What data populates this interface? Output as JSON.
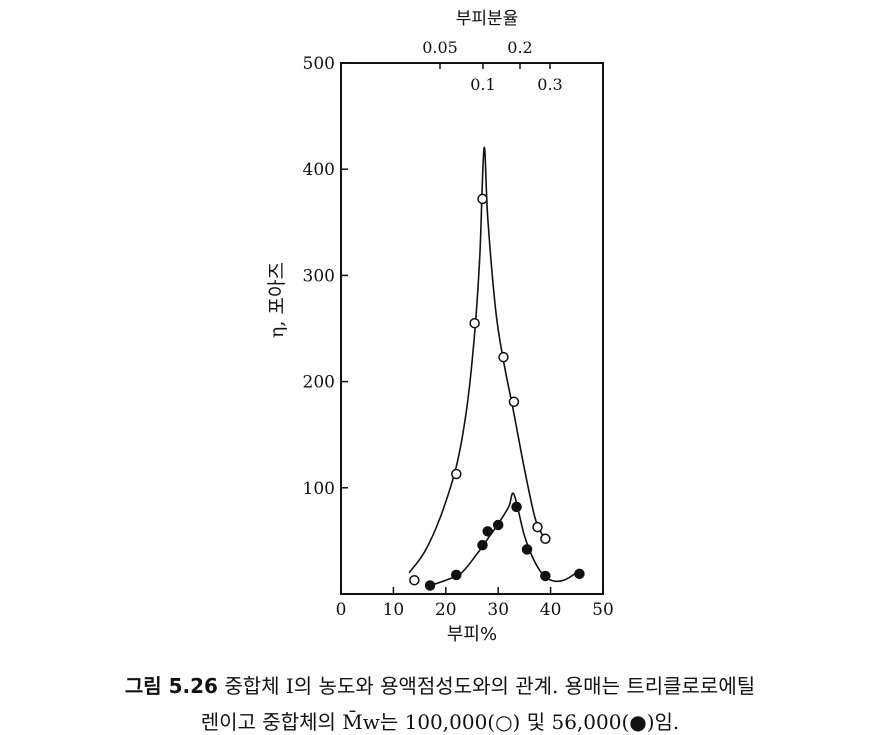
{
  "chart_data": {
    "type": "scatter",
    "xlabel": "부피%",
    "ylabel": "η, 포아즈",
    "top_axis_label": "부피분율",
    "xlim": [
      0,
      50
    ],
    "ylim": [
      0,
      500
    ],
    "x_ticks": [
      0,
      10,
      20,
      30,
      40,
      50
    ],
    "y_ticks": [
      100,
      200,
      300,
      400,
      500
    ],
    "top_ticks_row1": [
      {
        "label": "0.05",
        "value": 0.05
      },
      {
        "label": "0.2",
        "value": 0.2
      }
    ],
    "top_ticks_row2": [
      {
        "label": "0.1",
        "value": 0.1
      },
      {
        "label": "0.3",
        "value": 0.3
      }
    ],
    "series": [
      {
        "marker": "open-circle",
        "points": [
          {
            "x": 14,
            "y": 13
          },
          {
            "x": 22,
            "y": 113
          },
          {
            "x": 25.5,
            "y": 255
          },
          {
            "x": 27,
            "y": 372
          },
          {
            "x": 31,
            "y": 223
          },
          {
            "x": 33,
            "y": 181
          },
          {
            "x": 37.5,
            "y": 63
          },
          {
            "x": 39,
            "y": 52
          }
        ],
        "curve": [
          {
            "x": 13,
            "y": 20
          },
          {
            "x": 16,
            "y": 40
          },
          {
            "x": 19,
            "y": 73
          },
          {
            "x": 22,
            "y": 120
          },
          {
            "x": 24,
            "y": 175
          },
          {
            "x": 25.5,
            "y": 245
          },
          {
            "x": 26.5,
            "y": 320
          },
          {
            "x": 27.3,
            "y": 420
          },
          {
            "x": 28,
            "y": 355
          },
          {
            "x": 29.5,
            "y": 268
          },
          {
            "x": 31,
            "y": 220
          },
          {
            "x": 33,
            "y": 170
          },
          {
            "x": 35,
            "y": 118
          },
          {
            "x": 37,
            "y": 72
          },
          {
            "x": 38.5,
            "y": 55
          }
        ]
      },
      {
        "marker": "filled-circle",
        "points": [
          {
            "x": 17,
            "y": 8
          },
          {
            "x": 22,
            "y": 18
          },
          {
            "x": 27,
            "y": 46
          },
          {
            "x": 28,
            "y": 59
          },
          {
            "x": 30,
            "y": 65
          },
          {
            "x": 33.5,
            "y": 82
          },
          {
            "x": 35.5,
            "y": 42
          },
          {
            "x": 39,
            "y": 17
          },
          {
            "x": 45.5,
            "y": 19
          }
        ],
        "curve": [
          {
            "x": 17,
            "y": 8
          },
          {
            "x": 20,
            "y": 13
          },
          {
            "x": 23,
            "y": 20
          },
          {
            "x": 26,
            "y": 38
          },
          {
            "x": 28,
            "y": 52
          },
          {
            "x": 30,
            "y": 66
          },
          {
            "x": 32,
            "y": 82
          },
          {
            "x": 33,
            "y": 94
          },
          {
            "x": 35,
            "y": 55
          },
          {
            "x": 37,
            "y": 30
          },
          {
            "x": 39,
            "y": 16
          },
          {
            "x": 41,
            "y": 12
          },
          {
            "x": 43,
            "y": 14
          },
          {
            "x": 45.5,
            "y": 22
          }
        ]
      }
    ]
  },
  "caption": {
    "label": "그림 5.26",
    "line1": "중합체 I의 농도와 용액점성도와의 관계. 용매는 트리클로로에틸",
    "line2": "렌이고 중합체의 M̄w는 100,000(○) 및 56,000(●)임."
  }
}
